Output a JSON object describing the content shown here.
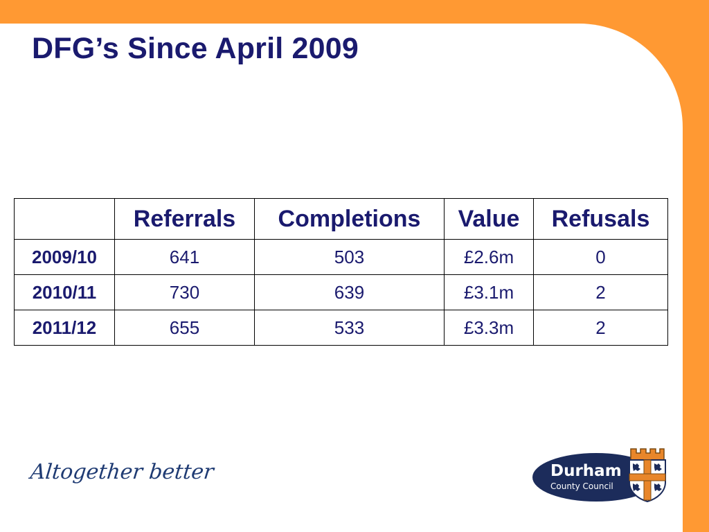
{
  "slide": {
    "title": "DFG’s Since April 2009",
    "tagline": "Altogether better",
    "logo": {
      "name": "Durham",
      "subtitle": "County Council",
      "crest_icon": "durham-crest-icon"
    },
    "colors": {
      "accent_orange": "#ff9933",
      "title_blue": "#1a1a6e",
      "logo_navy": "#1c2c5b"
    }
  },
  "table": {
    "columns": [
      "Referrals",
      "Completions",
      "Value",
      "Refusals"
    ],
    "rows": [
      {
        "year": "2009/10",
        "values": [
          "641",
          "503",
          "£2.6m",
          "0"
        ]
      },
      {
        "year": "2010/11",
        "values": [
          "730",
          "639",
          "£3.1m",
          "2"
        ]
      },
      {
        "year": "2011/12",
        "values": [
          "655",
          "533",
          "£3.3m",
          "2"
        ]
      }
    ]
  }
}
